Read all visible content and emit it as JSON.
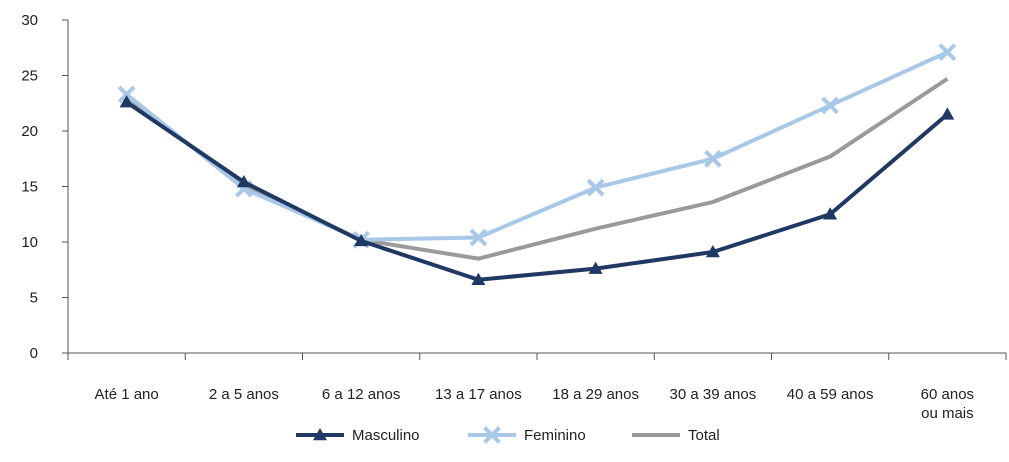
{
  "chart_data": {
    "type": "line",
    "categories": [
      [
        "Até 1 ano"
      ],
      [
        "2 a 5 anos"
      ],
      [
        "6 a 12 anos"
      ],
      [
        "13 a 17 anos"
      ],
      [
        "18 a 29 anos"
      ],
      [
        "30 a 39 anos"
      ],
      [
        "40 a 59 anos"
      ],
      [
        "60 anos",
        "ou mais"
      ]
    ],
    "ylim": [
      0,
      30
    ],
    "yticks": [
      0,
      5,
      10,
      15,
      20,
      25,
      30
    ],
    "grid": false,
    "legend_position": "bottom",
    "series": [
      {
        "name": "Masculino",
        "color": "#1f3864",
        "marker": "triangle",
        "values": [
          22.6,
          15.4,
          10.1,
          6.6,
          7.6,
          9.1,
          12.5,
          21.5
        ]
      },
      {
        "name": "Feminino",
        "color": "#a9c8e8",
        "marker": "x",
        "values": [
          23.3,
          14.8,
          10.2,
          10.4,
          14.9,
          17.5,
          22.3,
          27.1
        ]
      },
      {
        "name": "Total",
        "color": "#9a9a9a",
        "marker": "none",
        "values": [
          23.0,
          15.1,
          10.2,
          8.5,
          11.2,
          13.6,
          17.7,
          24.7
        ]
      }
    ]
  }
}
